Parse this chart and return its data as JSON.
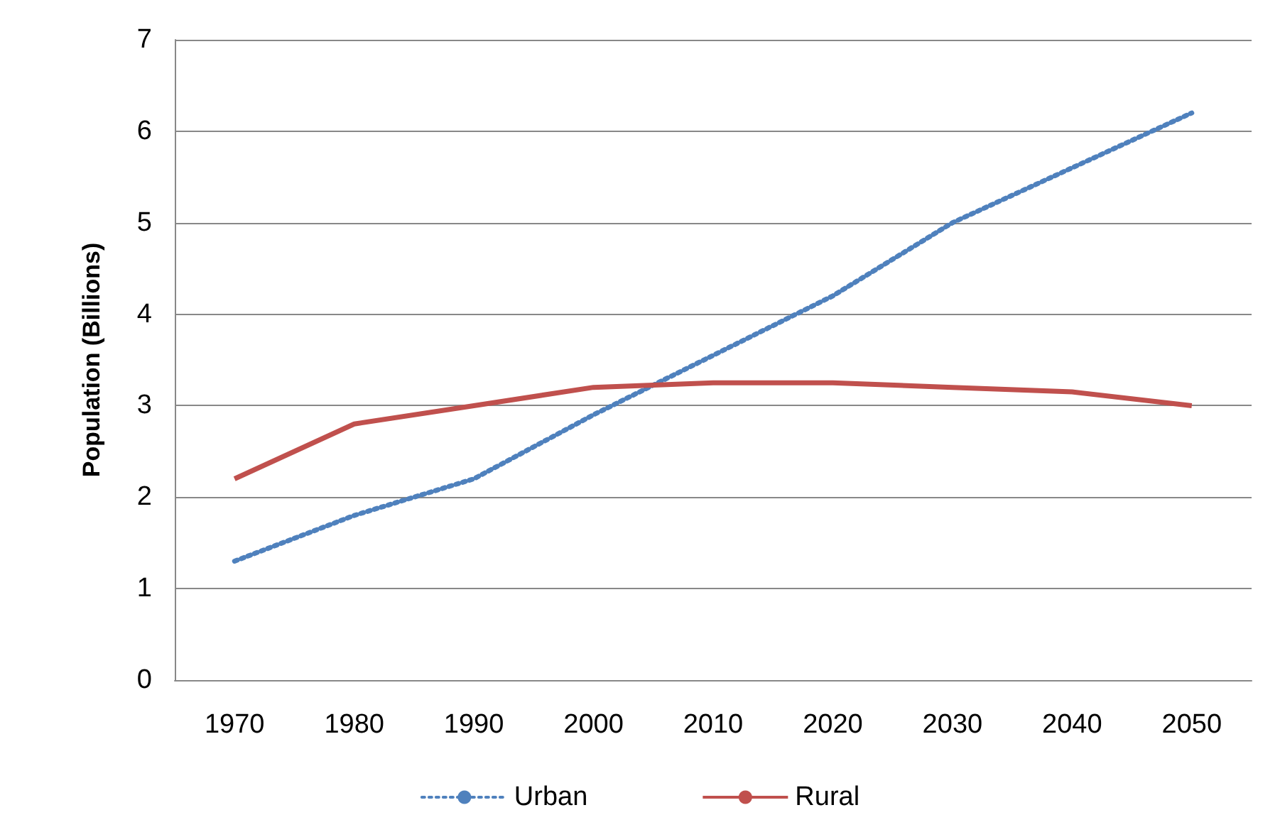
{
  "chart_data": {
    "type": "line",
    "ylabel": "Population (Billions)",
    "categories": [
      "1970",
      "1980",
      "1990",
      "2000",
      "2010",
      "2020",
      "2030",
      "2040",
      "2050"
    ],
    "series": [
      {
        "name": "Urban",
        "color": "#4f81bd",
        "line_style": "dotted",
        "values": [
          1.3,
          1.8,
          2.2,
          2.9,
          3.55,
          4.2,
          5.0,
          5.6,
          6.2
        ]
      },
      {
        "name": "Rural",
        "color": "#c0504d",
        "line_style": "solid",
        "values": [
          2.2,
          2.8,
          3.0,
          3.2,
          3.25,
          3.25,
          3.2,
          3.15,
          3.0
        ]
      }
    ],
    "ylim": [
      0,
      7
    ],
    "yticks": [
      0,
      1,
      2,
      3,
      4,
      5,
      6,
      7
    ],
    "grid": "y",
    "legend": "bottom",
    "marker": "none"
  }
}
